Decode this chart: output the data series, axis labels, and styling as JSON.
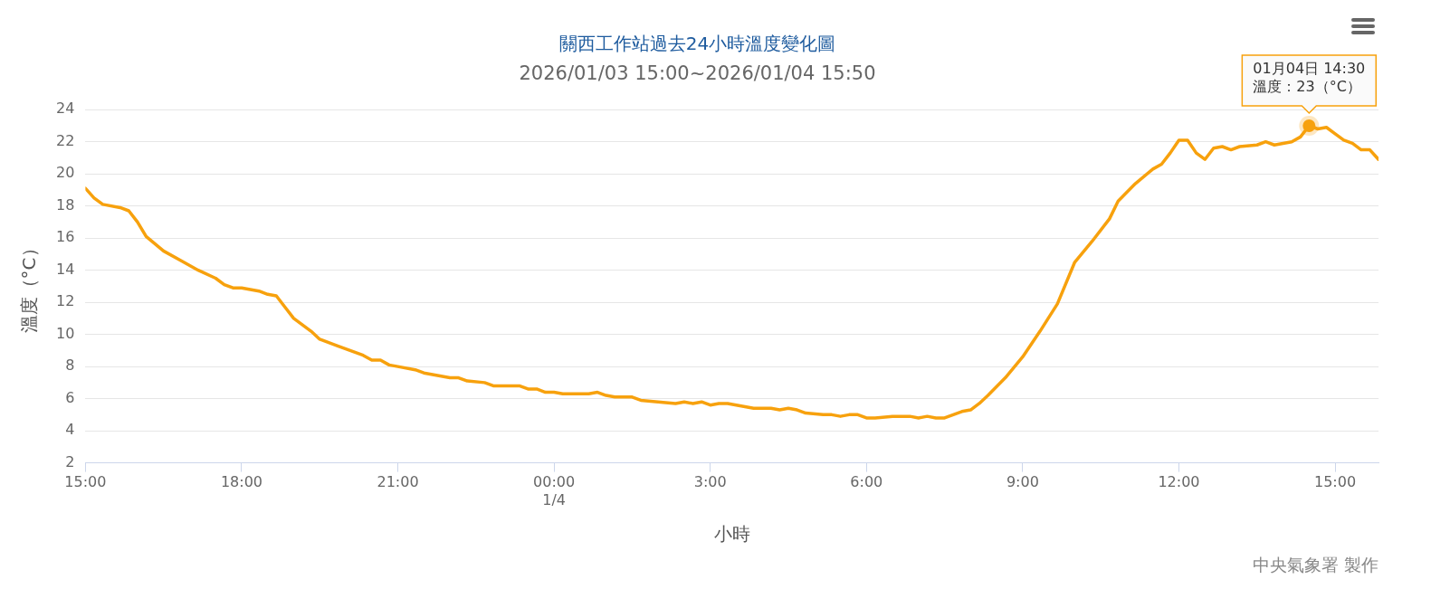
{
  "chart_data": {
    "type": "line",
    "title": "關西工作站過去24小時溫度變化圖",
    "subtitle": "2026/01/03 15:00~2026/01/04 15:50",
    "xlabel": "小時",
    "ylabel": "溫度（°C）",
    "x": [
      "2026-01-03T15:00",
      "2026-01-03T15:10",
      "2026-01-03T15:20",
      "2026-01-03T15:40",
      "2026-01-03T15:50",
      "2026-01-03T16:00",
      "2026-01-03T16:10",
      "2026-01-03T16:30",
      "2026-01-03T16:50",
      "2026-01-03T17:10",
      "2026-01-03T17:30",
      "2026-01-03T17:40",
      "2026-01-03T17:50",
      "2026-01-03T18:00",
      "2026-01-03T18:20",
      "2026-01-03T18:30",
      "2026-01-03T18:40",
      "2026-01-03T18:50",
      "2026-01-03T19:00",
      "2026-01-03T19:20",
      "2026-01-03T19:30",
      "2026-01-03T19:50",
      "2026-01-03T20:00",
      "2026-01-03T20:20",
      "2026-01-03T20:30",
      "2026-01-03T20:40",
      "2026-01-03T20:50",
      "2026-01-03T21:00",
      "2026-01-03T21:20",
      "2026-01-03T21:30",
      "2026-01-03T21:50",
      "2026-01-03T22:00",
      "2026-01-03T22:10",
      "2026-01-03T22:20",
      "2026-01-03T22:40",
      "2026-01-03T22:50",
      "2026-01-03T23:20",
      "2026-01-03T23:30",
      "2026-01-03T23:40",
      "2026-01-03T23:50",
      "2026-01-04T00:00",
      "2026-01-04T00:10",
      "2026-01-04T00:40",
      "2026-01-04T00:50",
      "2026-01-04T01:00",
      "2026-01-04T01:10",
      "2026-01-04T01:30",
      "2026-01-04T01:40",
      "2026-01-04T02:00",
      "2026-01-04T02:20",
      "2026-01-04T02:30",
      "2026-01-04T02:40",
      "2026-01-04T02:50",
      "2026-01-04T03:00",
      "2026-01-04T03:10",
      "2026-01-04T03:20",
      "2026-01-04T03:40",
      "2026-01-04T03:50",
      "2026-01-04T04:10",
      "2026-01-04T04:20",
      "2026-01-04T04:30",
      "2026-01-04T04:40",
      "2026-01-04T04:50",
      "2026-01-04T05:10",
      "2026-01-04T05:20",
      "2026-01-04T05:30",
      "2026-01-04T05:40",
      "2026-01-04T05:50",
      "2026-01-04T06:00",
      "2026-01-04T06:10",
      "2026-01-04T06:30",
      "2026-01-04T06:50",
      "2026-01-04T07:00",
      "2026-01-04T07:10",
      "2026-01-04T07:20",
      "2026-01-04T07:30",
      "2026-01-04T07:40",
      "2026-01-04T07:50",
      "2026-01-04T08:00",
      "2026-01-04T08:10",
      "2026-01-04T08:20",
      "2026-01-04T08:40",
      "2026-01-04T09:00",
      "2026-01-04T09:20",
      "2026-01-04T09:40",
      "2026-01-04T10:00",
      "2026-01-04T10:20",
      "2026-01-04T10:40",
      "2026-01-04T10:50",
      "2026-01-04T11:10",
      "2026-01-04T11:30",
      "2026-01-04T11:40",
      "2026-01-04T11:50",
      "2026-01-04T12:00",
      "2026-01-04T12:10",
      "2026-01-04T12:20",
      "2026-01-04T12:30",
      "2026-01-04T12:40",
      "2026-01-04T12:50",
      "2026-01-04T13:00",
      "2026-01-04T13:10",
      "2026-01-04T13:30",
      "2026-01-04T13:40",
      "2026-01-04T13:50",
      "2026-01-04T14:00",
      "2026-01-04T14:10",
      "2026-01-04T14:20",
      "2026-01-04T14:30",
      "2026-01-04T14:40",
      "2026-01-04T14:50",
      "2026-01-04T15:00",
      "2026-01-04T15:10",
      "2026-01-04T15:20",
      "2026-01-04T15:30",
      "2026-01-04T15:40",
      "2026-01-04T15:50"
    ],
    "series": [
      {
        "color": "#f7a10d",
        "values": [
          19.1,
          18.5,
          18.1,
          17.9,
          17.7,
          17.0,
          16.1,
          15.2,
          14.6,
          14.0,
          13.5,
          13.1,
          12.9,
          12.9,
          12.7,
          12.5,
          12.4,
          11.7,
          11.0,
          10.2,
          9.7,
          9.3,
          9.1,
          8.7,
          8.4,
          8.4,
          8.1,
          8.0,
          7.8,
          7.6,
          7.4,
          7.3,
          7.3,
          7.1,
          7.0,
          6.8,
          6.8,
          6.6,
          6.6,
          6.4,
          6.4,
          6.3,
          6.3,
          6.4,
          6.2,
          6.1,
          6.1,
          5.9,
          5.8,
          5.7,
          5.8,
          5.7,
          5.8,
          5.6,
          5.7,
          5.7,
          5.5,
          5.4,
          5.4,
          5.3,
          5.4,
          5.3,
          5.1,
          5.0,
          5.0,
          4.9,
          5.0,
          5.0,
          4.8,
          4.8,
          4.9,
          4.9,
          4.8,
          4.9,
          4.8,
          4.8,
          5.0,
          5.2,
          5.3,
          5.7,
          6.2,
          7.3,
          8.6,
          10.2,
          11.9,
          14.5,
          15.8,
          17.2,
          18.3,
          19.4,
          20.3,
          20.6,
          21.3,
          22.1,
          22.1,
          21.3,
          20.9,
          21.6,
          21.7,
          21.5,
          21.7,
          21.8,
          22.0,
          21.8,
          21.9,
          22.0,
          22.3,
          23,
          22.8,
          22.9,
          22.5,
          22.1,
          21.9,
          21.5,
          21.5,
          20.9
        ]
      }
    ],
    "xlim": [
      "2026-01-03T15:00",
      "2026-01-04T15:50"
    ],
    "xticks": [
      {
        "value": "2026-01-03T15:00",
        "label": "15:00"
      },
      {
        "value": "2026-01-03T18:00",
        "label": "18:00"
      },
      {
        "value": "2026-01-03T21:00",
        "label": "21:00"
      },
      {
        "value": "2026-01-04T00:00",
        "label": "00:00\n1/4"
      },
      {
        "value": "2026-01-04T03:00",
        "label": "3:00"
      },
      {
        "value": "2026-01-04T06:00",
        "label": "6:00"
      },
      {
        "value": "2026-01-04T09:00",
        "label": "9:00"
      },
      {
        "value": "2026-01-04T12:00",
        "label": "12:00"
      },
      {
        "value": "2026-01-04T15:00",
        "label": "15:00"
      }
    ],
    "ylim": [
      2,
      24
    ],
    "yticks": [
      2,
      4,
      6,
      8,
      10,
      12,
      14,
      16,
      18,
      20,
      22,
      24
    ],
    "grid": "y",
    "legend": false,
    "marker": "none",
    "line_style": "solid",
    "annotations": [
      {
        "text": "01月04日 14:30\n溫度：23（°C）",
        "x": "2026-01-04T14:30",
        "y": 23
      },
      "中央氣象署 製作"
    ]
  }
}
